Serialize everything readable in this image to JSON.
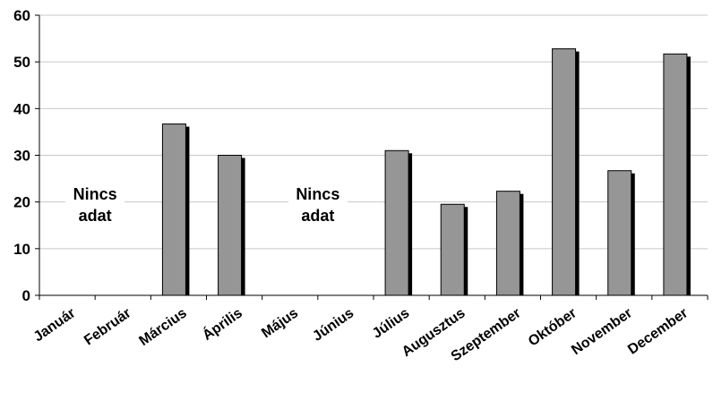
{
  "chart_data": {
    "type": "bar",
    "categories": [
      "Január",
      "Február",
      "Március",
      "Április",
      "Május",
      "Június",
      "Július",
      "Augusztus",
      "Szeptember",
      "Október",
      "November",
      "December"
    ],
    "values": [
      null,
      null,
      36.7,
      30.0,
      null,
      null,
      31.0,
      19.5,
      22.3,
      52.8,
      26.7,
      51.7
    ],
    "ylim": [
      0,
      60
    ],
    "yticks": [
      0,
      10,
      20,
      30,
      40,
      50,
      60
    ],
    "grid": true,
    "bar_color": "#969696",
    "shadow_color": "#000000",
    "annotations": [
      {
        "text": "Nincs\nadat",
        "covers": [
          "Január",
          "Február"
        ]
      },
      {
        "text": "Nincs\nadat",
        "covers": [
          "Május",
          "Június"
        ]
      }
    ]
  }
}
